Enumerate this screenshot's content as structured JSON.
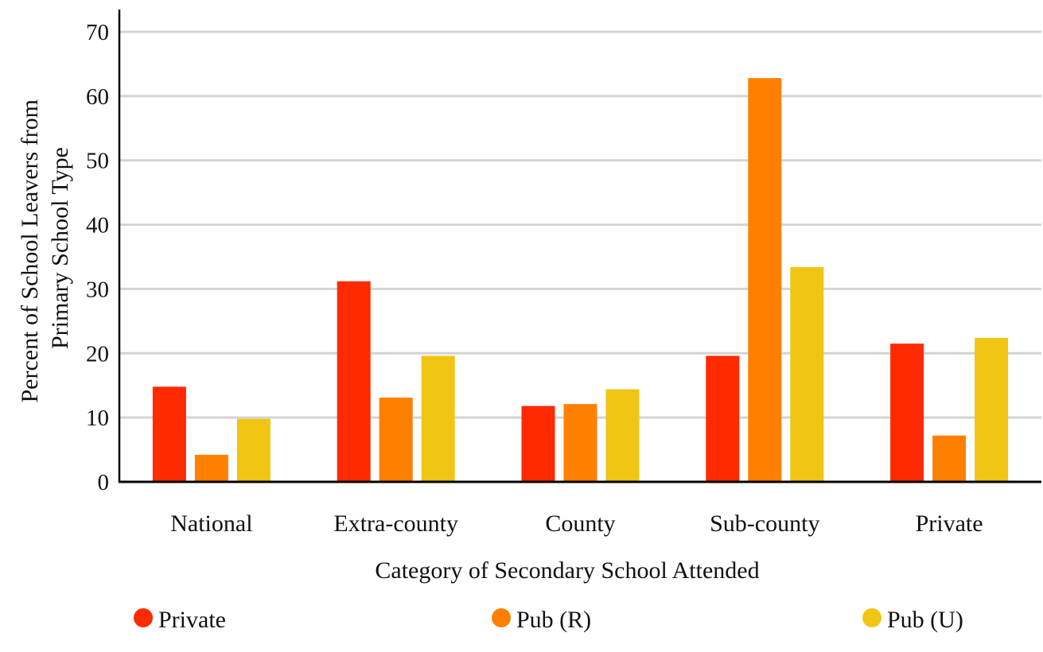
{
  "chart_data": {
    "type": "bar",
    "title": "",
    "xlabel": "Category of Secondary School Attended",
    "ylabel_lines": [
      "Percent of School Leavers from",
      "Primary School Type"
    ],
    "categories": [
      "National",
      "Extra-county",
      "County",
      "Sub-county",
      "Private"
    ],
    "series": [
      {
        "name": "Private",
        "color": "#ff2a00",
        "values": [
          14.8,
          31.2,
          11.8,
          19.6,
          21.5
        ]
      },
      {
        "name": "Pub (R)",
        "color": "#ff7f00",
        "values": [
          4.2,
          13.1,
          12.1,
          62.8,
          7.2
        ]
      },
      {
        "name": "Pub (U)",
        "color": "#f0c513",
        "values": [
          9.8,
          19.6,
          14.4,
          33.4,
          22.4
        ]
      }
    ],
    "ylim": [
      0,
      70
    ],
    "yticks": [
      0,
      10,
      20,
      30,
      40,
      50,
      60,
      70
    ],
    "grid": true,
    "legend_position": "bottom"
  }
}
